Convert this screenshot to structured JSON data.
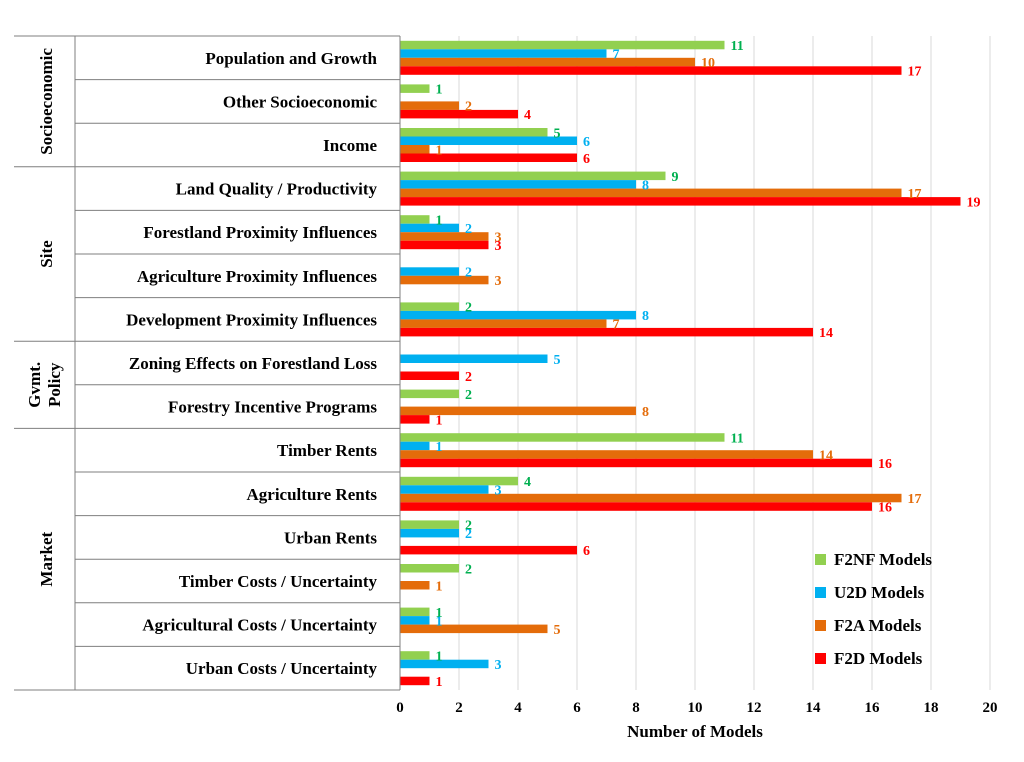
{
  "chart_data": {
    "type": "bar",
    "orientation": "horizontal",
    "xlabel": "Number of Models",
    "xlim": [
      0,
      20
    ],
    "xticks": [
      0,
      2,
      4,
      6,
      8,
      10,
      12,
      14,
      16,
      18,
      20
    ],
    "grid": true,
    "legend_position": "bottom-right",
    "groups": [
      {
        "name": "Socioeconomic",
        "categories": [
          "Population and Growth",
          "Other Socioeconomic",
          "Income"
        ]
      },
      {
        "name": "Site",
        "categories": [
          "Land Quality / Productivity",
          "Forestland Proximity Influences",
          "Agriculture Proximity Influences",
          "Development Proximity Influences"
        ]
      },
      {
        "name": "Gvmt. Policy",
        "categories": [
          "Zoning Effects on Forestland Loss",
          "Forestry Incentive Programs"
        ]
      },
      {
        "name": "Market",
        "categories": [
          "Timber Rents",
          "Agriculture Rents",
          "Urban Rents",
          "Timber Costs / Uncertainty",
          "Agricultural Costs / Uncertainty",
          "Urban Costs / Uncertainty"
        ]
      }
    ],
    "categories": [
      "Population and Growth",
      "Other Socioeconomic",
      "Income",
      "Land Quality / Productivity",
      "Forestland Proximity Influences",
      "Agriculture Proximity Influences",
      "Development Proximity Influences",
      "Zoning Effects on Forestland Loss",
      "Forestry Incentive Programs",
      "Timber Rents",
      "Agriculture Rents",
      "Urban Rents",
      "Timber Costs / Uncertainty",
      "Agricultural Costs / Uncertainty",
      "Urban Costs / Uncertainty"
    ],
    "series": [
      {
        "name": "F2NF Models",
        "color": "#92d050",
        "label_color": "#00b050",
        "values": [
          11,
          1,
          5,
          9,
          1,
          null,
          2,
          null,
          2,
          11,
          4,
          2,
          2,
          1,
          1
        ]
      },
      {
        "name": "U2D Models",
        "color": "#00b0f0",
        "label_color": "#00b0f0",
        "values": [
          7,
          null,
          6,
          8,
          2,
          2,
          8,
          5,
          null,
          1,
          3,
          2,
          null,
          1,
          3
        ]
      },
      {
        "name": "F2A Models",
        "color": "#e46c0a",
        "label_color": "#e46c0a",
        "values": [
          10,
          2,
          1,
          17,
          3,
          3,
          7,
          null,
          8,
          14,
          17,
          null,
          1,
          5,
          null
        ]
      },
      {
        "name": "F2D Models",
        "color": "#ff0000",
        "label_color": "#ff0000",
        "values": [
          17,
          4,
          6,
          19,
          3,
          null,
          14,
          2,
          1,
          16,
          16,
          6,
          null,
          null,
          1
        ]
      }
    ]
  }
}
